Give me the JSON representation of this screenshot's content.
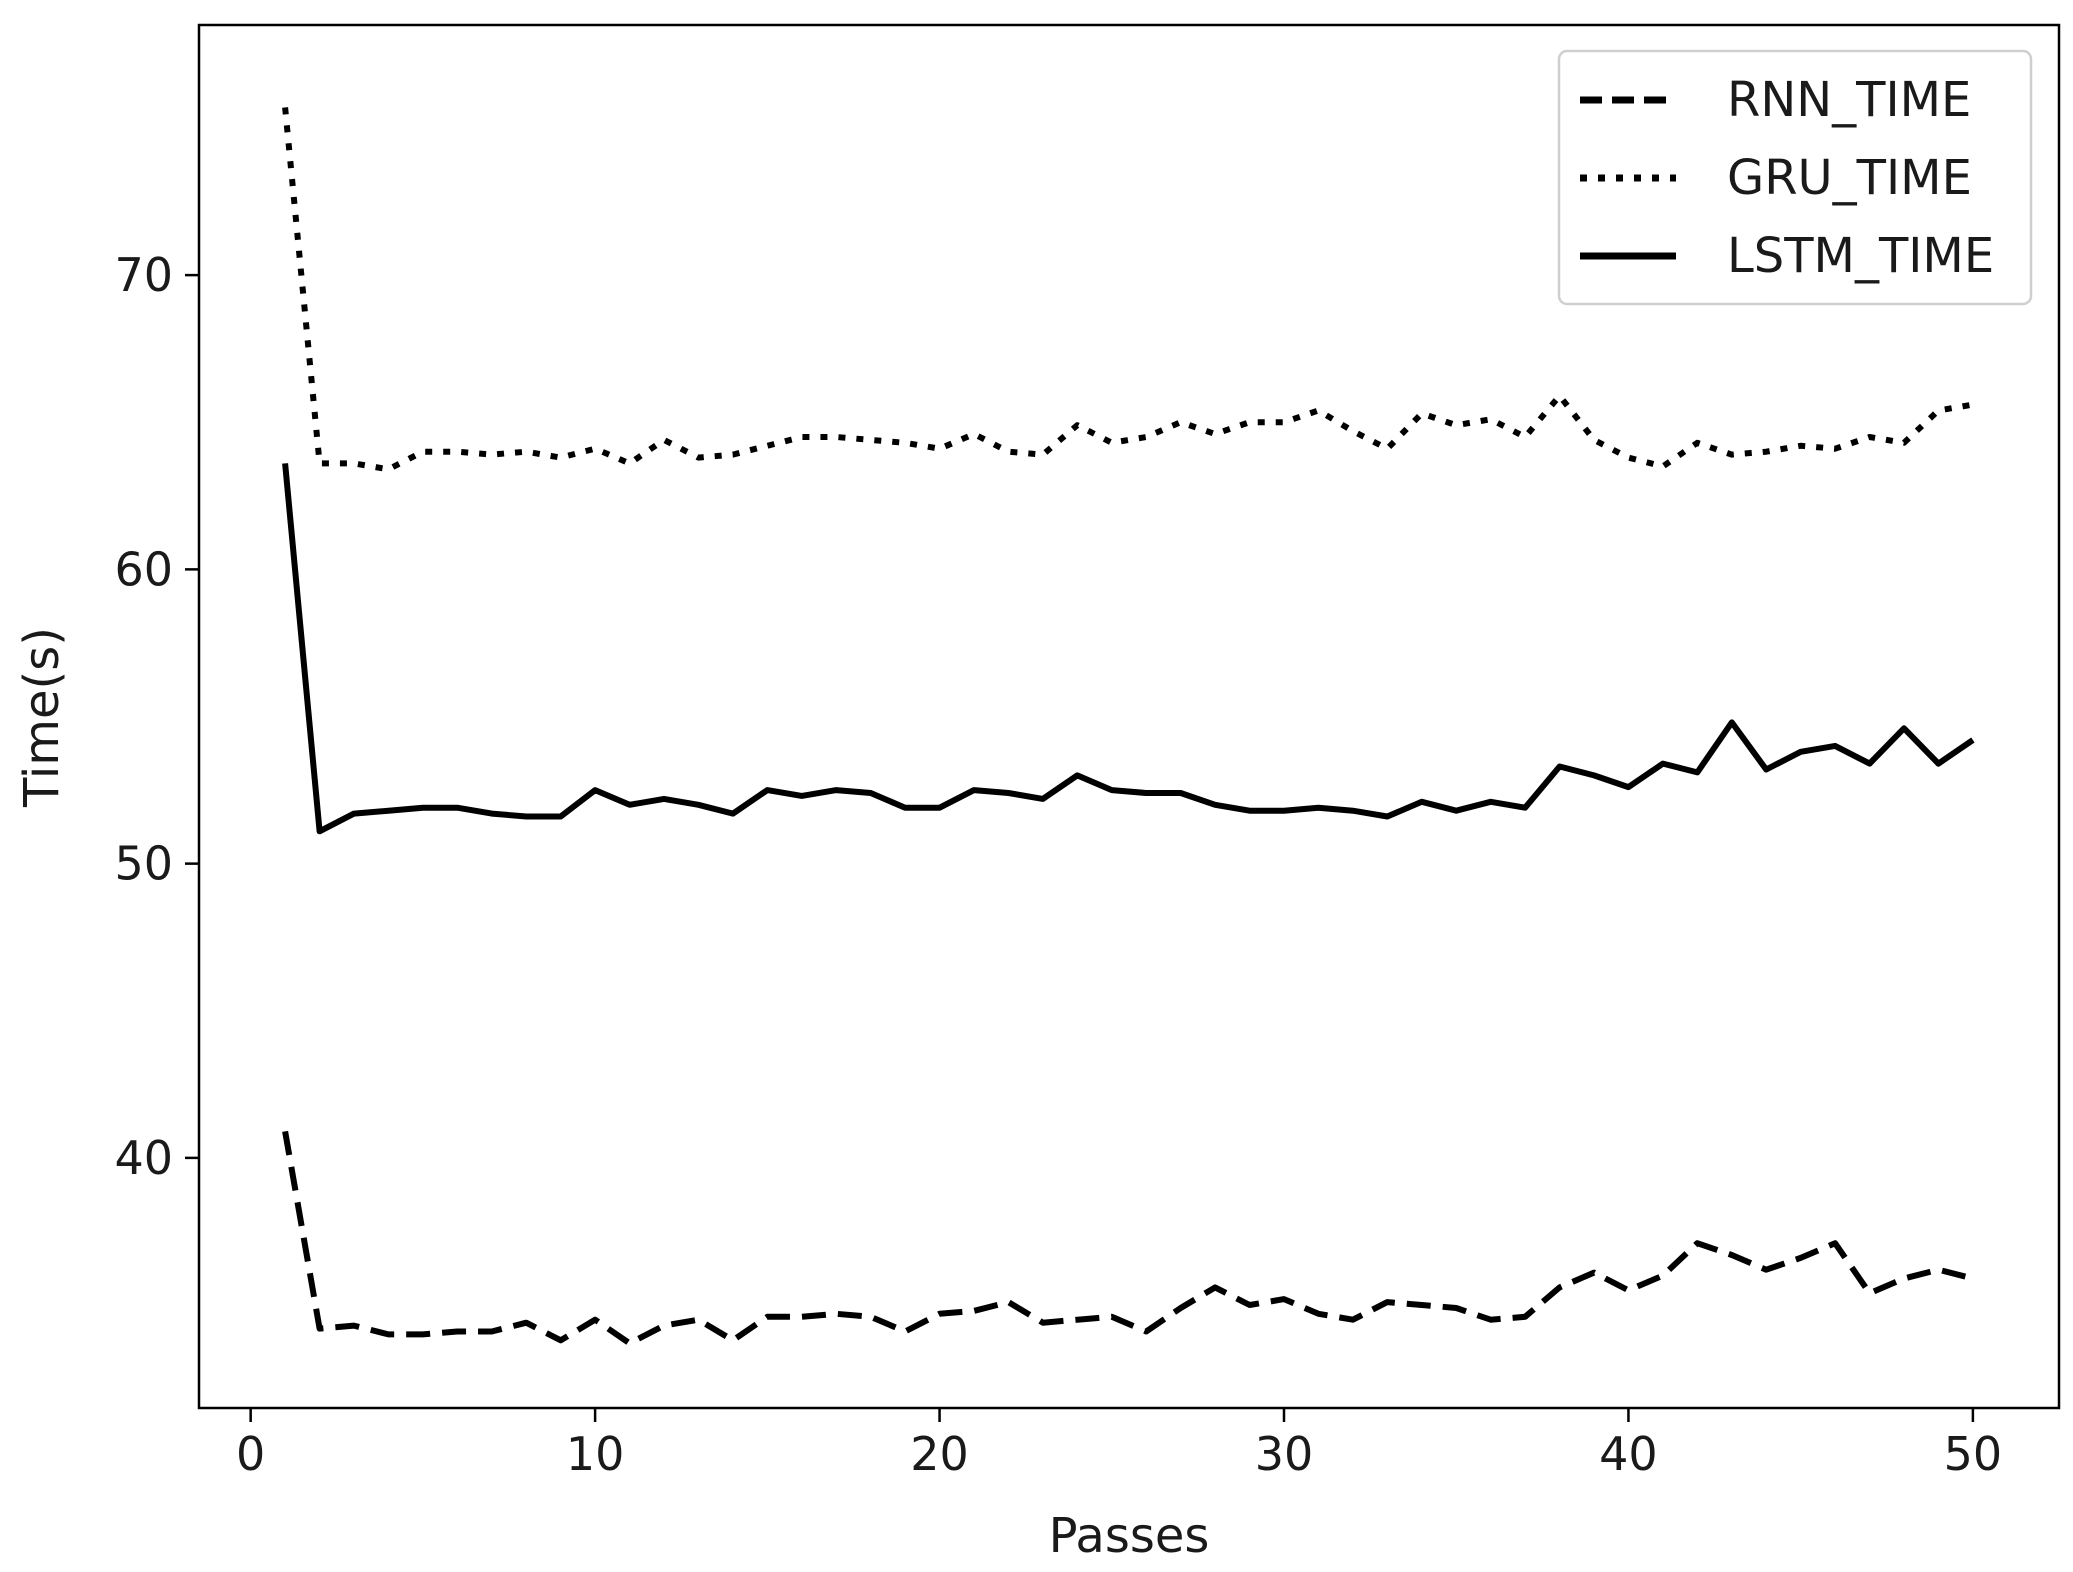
{
  "chart_data": {
    "type": "line",
    "title": "",
    "xlabel": "Passes",
    "ylabel": "Time(s)",
    "xlim": [
      -1.5,
      52.5
    ],
    "ylim": [
      31.5,
      78.5
    ],
    "xticks": [
      0,
      10,
      20,
      30,
      40,
      50
    ],
    "yticks": [
      40,
      50,
      60,
      70
    ],
    "grid": false,
    "legend": "top-right",
    "x": [
      1,
      2,
      3,
      4,
      5,
      6,
      7,
      8,
      9,
      10,
      11,
      12,
      13,
      14,
      15,
      16,
      17,
      18,
      19,
      20,
      21,
      22,
      23,
      24,
      25,
      26,
      27,
      28,
      29,
      30,
      31,
      32,
      33,
      34,
      35,
      36,
      37,
      38,
      39,
      40,
      41,
      42,
      43,
      44,
      45,
      46,
      47,
      48,
      49,
      50
    ],
    "series": [
      {
        "name": "RNN_TIME",
        "style": "dashed",
        "color": "#000000",
        "values": [
          40.9,
          34.2,
          34.3,
          34.0,
          34.0,
          34.1,
          34.1,
          34.4,
          33.8,
          34.5,
          33.7,
          34.3,
          34.5,
          33.8,
          34.6,
          34.6,
          34.7,
          34.6,
          34.1,
          34.7,
          34.8,
          35.1,
          34.4,
          34.5,
          34.6,
          34.1,
          34.9,
          35.6,
          35.0,
          35.2,
          34.7,
          34.5,
          35.1,
          35.0,
          34.9,
          34.5,
          34.6,
          35.6,
          36.1,
          35.5,
          36.0,
          37.1,
          36.7,
          36.2,
          36.6,
          37.1,
          35.4,
          35.9,
          36.2,
          35.9
        ]
      },
      {
        "name": "GRU_TIME",
        "style": "dotted",
        "color": "#000000",
        "values": [
          75.7,
          63.6,
          63.6,
          63.4,
          64.0,
          64.0,
          63.9,
          64.0,
          63.8,
          64.1,
          63.6,
          64.4,
          63.8,
          63.9,
          64.2,
          64.5,
          64.5,
          64.4,
          64.3,
          64.1,
          64.6,
          64.0,
          63.9,
          64.9,
          64.3,
          64.5,
          65.0,
          64.6,
          65.0,
          65.0,
          65.4,
          64.7,
          64.1,
          65.3,
          64.9,
          65.1,
          64.5,
          65.9,
          64.4,
          63.8,
          63.5,
          64.3,
          63.9,
          64.0,
          64.2,
          64.1,
          64.5,
          64.3,
          65.4,
          65.6
        ]
      },
      {
        "name": "LSTM_TIME",
        "style": "solid",
        "color": "#000000",
        "values": [
          63.6,
          51.1,
          51.7,
          51.8,
          51.9,
          51.9,
          51.7,
          51.6,
          51.6,
          52.5,
          52.0,
          52.2,
          52.0,
          51.7,
          52.5,
          52.3,
          52.5,
          52.4,
          51.9,
          51.9,
          52.5,
          52.4,
          52.2,
          53.0,
          52.5,
          52.4,
          52.4,
          52.0,
          51.8,
          51.8,
          51.9,
          51.8,
          51.6,
          52.1,
          51.8,
          52.1,
          51.9,
          53.3,
          53.0,
          52.6,
          53.4,
          53.1,
          54.8,
          53.2,
          53.8,
          54.0,
          53.4,
          54.6,
          53.4,
          54.2
        ]
      }
    ]
  }
}
